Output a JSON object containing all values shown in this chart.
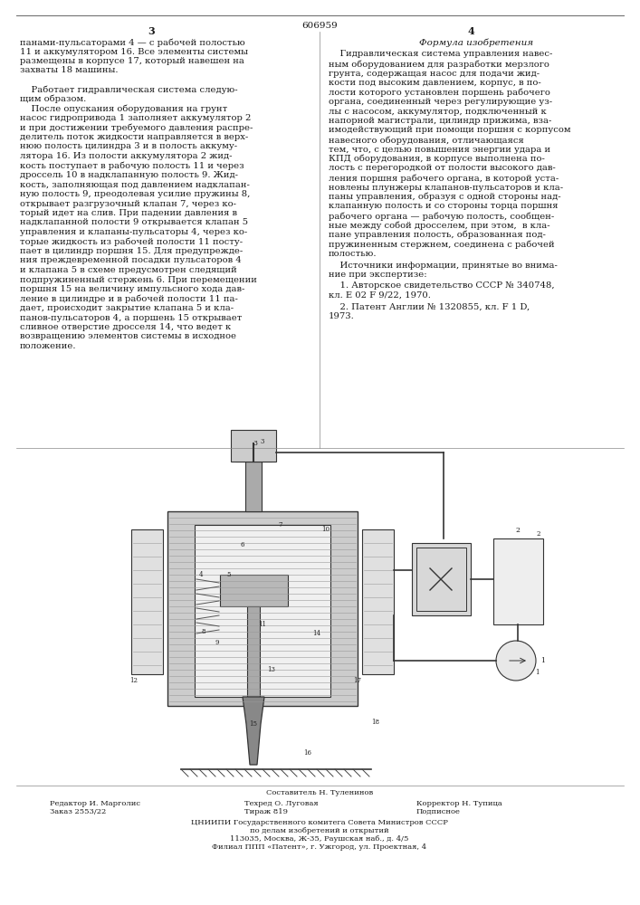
{
  "patent_number": "606959",
  "page_left": "3",
  "page_right": "4",
  "bg_color": "#ffffff",
  "text_color": "#1a1a1a",
  "left_col_lines": [
    "панами-пульсаторами 4 — с рабочей полостью",
    "11 и аккумулятором 16. Все элементы системы",
    "размещены в корпусе 17, который навешен на",
    "захваты 18 машины.",
    "",
    "    Работает гидравлическая система следую-",
    "щим образом.",
    "    После опускания оборудования на грунт",
    "насос гидропривода 1 заполняет аккумулятор 2",
    "и при достижении требуемого давления распре-",
    "делитель поток жидкости направляется в верх-",
    "нюю полость цилиндра 3 и в полость аккуму-",
    "лятора 16. Из полости аккумулятора 2 жид-",
    "кость поступает в рабочую полость 11 и через",
    "дроссель 10 в надклапанную полость 9. Жид-",
    "кость, заполняющая под давлением надклапан-",
    "ную полость 9, преодолевая усилие пружины 8,",
    "открывает разгрузочный клапан 7, через ко-",
    "торый идет на слив. При падении давления в",
    "надклапанной полости 9 открывается клапан 5",
    "управления и клапаны-пульсаторы 4, через ко-",
    "торые жидкость из рабочей полости 11 посту-",
    "пает в цилиндр поршня 15. Для предупрежде-",
    "ния преждевременной посадки пульсаторов 4",
    "и клапана 5 в схеме предусмотрен следящий",
    "подпружиненный стержень 6. При перемещении",
    "поршня 15 на величину импульсного хода дав-",
    "ление в цилиндре и в рабочей полости 11 па-",
    "дает, происходит закрытие клапана 5 и кла-",
    "панов-пульсаторов 4, а поршень 15 открывает",
    "сливное отверстие дросселя 14, что ведет к",
    "возвращению элементов системы в исходное",
    "положение."
  ],
  "right_col_header": "Формула изобретения",
  "right_col_lines": [
    "    Гидравлическая система управления навес-",
    "ным оборудованием для разработки мерзлого",
    "грунта, содержащая насос для подачи жид-",
    "кости под высоким давлением, корпус, в по-",
    "лости которого установлен поршень рабочего",
    "органа, соединенный через регулирующие уз-",
    "лы с насосом, аккумулятор, подключенный к",
    "напорной магистрали, цилиндр прижима, вза-",
    "имодействующий при помощи поршня с корпусом",
    "навесного оборудования, отличающаяся",
    "тем, что, с целью повышения энергии удара и",
    "КПД оборудования, в корпусе выполнена по-",
    "лость с перегородкой от полости высокого дав-",
    "ления поршня рабочего органа, в которой уста-",
    "новлены плунжеры клапанов-пульсаторов и кла-",
    "паны управления, образуя с одной стороны над-",
    "клапанную полость и со стороны торца поршня",
    "рабочего органа — рабочую полость, сообщен-",
    "ные между собой дросселем, при этом,  в кла-",
    "пане управления полость, образованная под-",
    "пружиненным стержнем, соединена с рабочей",
    "полостью."
  ],
  "sources_line1": "    Источники информации, принятые во внима-",
  "sources_line2": "ние при экспертизе:",
  "ref1a": "    1. Авторское свидетельство СССР № 340748,",
  "ref1b": "кл. Е 02 F 9/22, 1970.",
  "ref2a": "    2. Патент Англии № 1320855, кл. F 1 D,",
  "ref2b": "1973.",
  "composer": "Составитель Н. Туленинов",
  "editor": "Редактор И. Марголис",
  "techred": "Техред О. Луговая",
  "corrector": "Корректор Н. Тупица",
  "order": "Заказ 2553/22",
  "circulation": "Тираж 819",
  "subscription": "Подписное",
  "institute": "ЦНИИПИ Государственного комитега Совета Министров СССР",
  "dept": "по делам изобретений и открытий",
  "address": "113035, Москва, Ж-35, Раушская наб., д. 4/5",
  "branch": "Филиал ППП «Патент», г. Ужгород, ул. Проектная, 4"
}
